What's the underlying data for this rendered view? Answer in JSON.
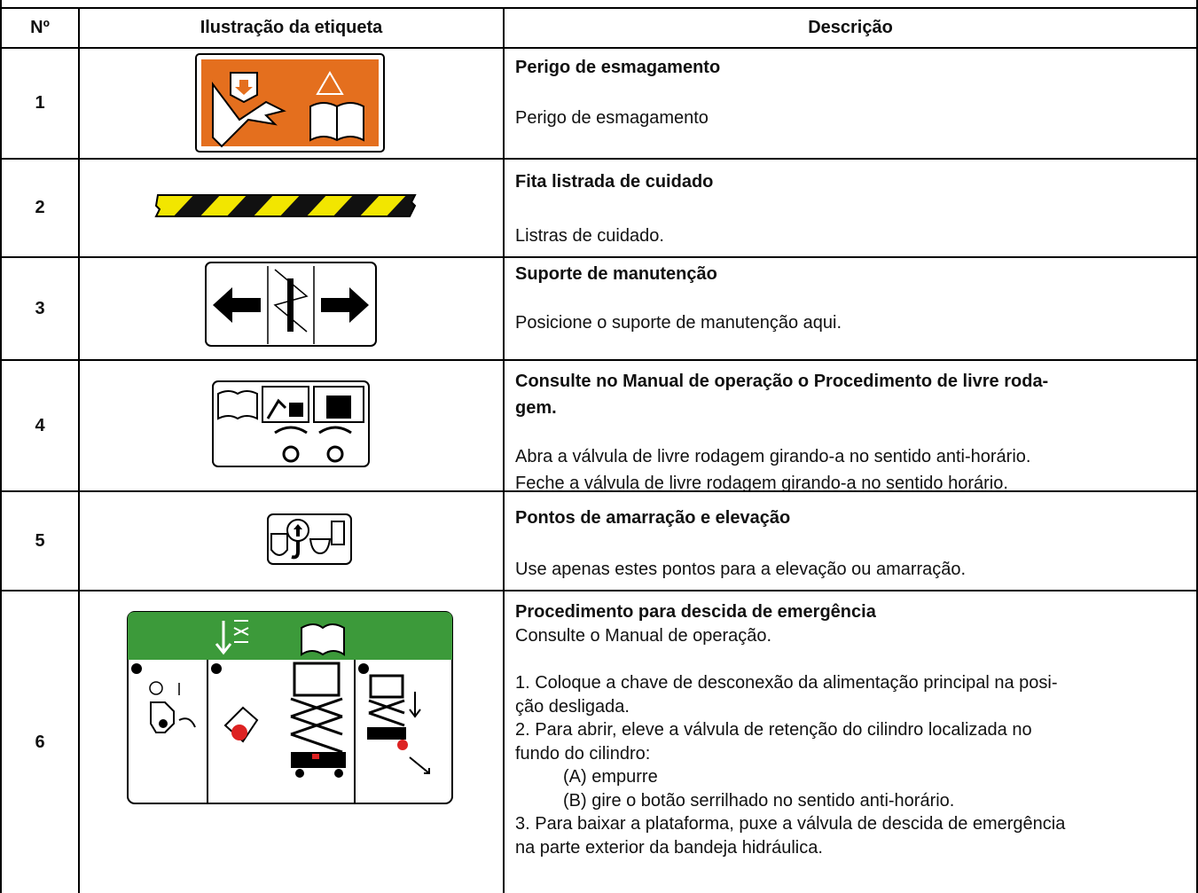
{
  "table": {
    "headers": [
      "Nº",
      "Ilustração da etiqueta",
      "Descrição"
    ],
    "rows": [
      {
        "number": "1",
        "title": [
          "Perigo de esmagamento"
        ],
        "description": [
          "Perigo de esmagamento"
        ]
      },
      {
        "number": "2",
        "title": [
          "Fita listrada de cuidado"
        ],
        "description": [
          "Listras de cuidado."
        ]
      },
      {
        "number": "3",
        "title": [
          "Suporte de manutenção"
        ],
        "description": [
          "Posicione o suporte de manutenção aqui."
        ]
      },
      {
        "number": "4",
        "title": [
          "Consulte no Manual de operação o Procedimento de livre roda-",
          "gem."
        ],
        "description": [
          "Abra a válvula de livre rodagem girando-a no sentido anti-horário.",
          "Feche a válvula de livre rodagem girando-a no sentido horário."
        ]
      },
      {
        "number": "5",
        "title": [
          "Pontos de amarração e elevação"
        ],
        "description": [
          "Use apenas estes pontos para a elevação ou amarração."
        ]
      },
      {
        "number": "6",
        "title": [
          "Procedimento para descida de emergência"
        ],
        "description": [
          "Consulte o Manual de operação.",
          "1. Coloque a chave de desconexão da alimentação principal na posi-",
          "ção desligada.",
          "2. Para abrir, eleve a válvula de retenção do cilindro localizada no",
          "fundo do cilindro:",
          "(A) empurre",
          "(B) gire o botão serrilhado no sentido anti-horário.",
          "3. Para baixar a plataforma, puxe a válvula de descida de emergência",
          "na parte exterior da bandeja hidráulica."
        ]
      }
    ]
  }
}
